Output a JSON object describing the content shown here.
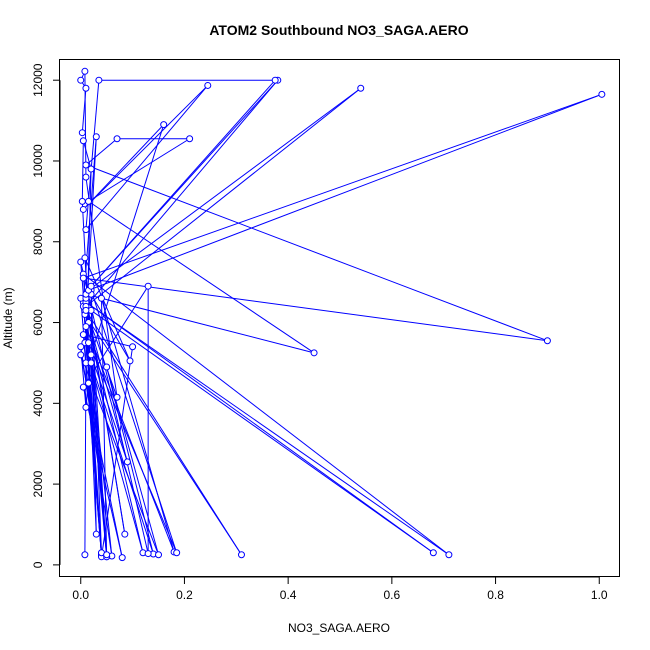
{
  "chart_data": {
    "type": "line",
    "title": "ATOM2 Southbound NO3_SAGA.AERO",
    "xlabel": "NO3_SAGA.AERO",
    "ylabel": "Altitude (m)",
    "xlim": [
      -0.04,
      1.04
    ],
    "ylim": [
      -300,
      12500
    ],
    "x_ticks": [
      0.0,
      0.2,
      0.4,
      0.6,
      0.8,
      1.0
    ],
    "x_tick_labels": [
      "0.0",
      "0.2",
      "0.4",
      "0.6",
      "0.8",
      "1.0"
    ],
    "y_ticks": [
      0,
      2000,
      4000,
      6000,
      8000,
      10000,
      12000
    ],
    "y_tick_labels": [
      "0",
      "2000",
      "4000",
      "6000",
      "8000",
      "10000",
      "12000"
    ],
    "grid": false,
    "series": [
      {
        "color": "#0000ff",
        "marker": "open-circle",
        "points": [
          [
            0.008,
            250
          ],
          [
            0.01,
            5000
          ],
          [
            0.02,
            9800
          ],
          [
            0.005,
            10500
          ],
          [
            0.003,
            9000
          ],
          [
            0.015,
            6000
          ],
          [
            0.12,
            300
          ],
          [
            0.008,
            5500
          ],
          [
            0.03,
            10600
          ],
          [
            0.005,
            6500
          ],
          [
            0.04,
            250
          ],
          [
            0.015,
            4500
          ],
          [
            0.01,
            3900
          ],
          [
            0.0,
            5400
          ],
          [
            0.06,
            220
          ],
          [
            0.02,
            5000
          ],
          [
            0.14,
            270
          ],
          [
            0.05,
            4900
          ],
          [
            0.15,
            250
          ],
          [
            0.0,
            5200
          ],
          [
            0.08,
            180
          ],
          [
            0.005,
            4400
          ],
          [
            0.13,
            6900
          ],
          [
            0.13,
            280
          ],
          [
            0.0,
            7500
          ],
          [
            0.008,
            6200
          ],
          [
            0.31,
            250
          ],
          [
            0.005,
            6400
          ],
          [
            0.05,
            200
          ],
          [
            0.02,
            6300
          ],
          [
            0.68,
            300
          ],
          [
            0.0,
            6600
          ],
          [
            0.04,
            250
          ],
          [
            0.005,
            5700
          ],
          [
            0.1,
            5400
          ],
          [
            0.04,
            200
          ],
          [
            0.01,
            5900
          ],
          [
            0.18,
            320
          ],
          [
            0.04,
            6600
          ],
          [
            0.05,
            200
          ],
          [
            0.015,
            5500
          ],
          [
            0.185,
            300
          ],
          [
            0.02,
            6800
          ],
          [
            0.04,
            300
          ],
          [
            0.005,
            7200
          ],
          [
            0.71,
            250
          ],
          [
            0.01,
            6500
          ],
          [
            0.05,
            250
          ],
          [
            0.008,
            7600
          ],
          [
            0.095,
            5050
          ],
          [
            0.02,
            6700
          ],
          [
            0.03,
            760
          ],
          [
            0.01,
            6600
          ],
          [
            0.085,
            760
          ],
          [
            0.01,
            6700
          ],
          [
            0.45,
            5250
          ],
          [
            0.015,
            9000
          ],
          [
            0.21,
            10550
          ],
          [
            0.07,
            10550
          ],
          [
            0.01,
            9900
          ],
          [
            0.9,
            5550
          ],
          [
            0.005,
            7100
          ],
          [
            1.005,
            11650
          ],
          [
            0.015,
            6800
          ],
          [
            0.54,
            11800
          ],
          [
            0.01,
            6400
          ],
          [
            0.38,
            12000
          ],
          [
            0.02,
            6900
          ],
          [
            0.375,
            12000
          ],
          [
            0.035,
            12000
          ],
          [
            0.01,
            8300
          ],
          [
            0.245,
            11870
          ],
          [
            0.005,
            8800
          ],
          [
            0.16,
            10900
          ],
          [
            0.02,
            5200
          ],
          [
            0.09,
            2550
          ],
          [
            0.01,
            6300
          ],
          [
            0.07,
            4150
          ],
          [
            0.01,
            9600
          ],
          [
            0.008,
            12220
          ],
          [
            0.0,
            12000
          ],
          [
            0.01,
            11800
          ],
          [
            0.003,
            10700
          ]
        ]
      }
    ]
  }
}
